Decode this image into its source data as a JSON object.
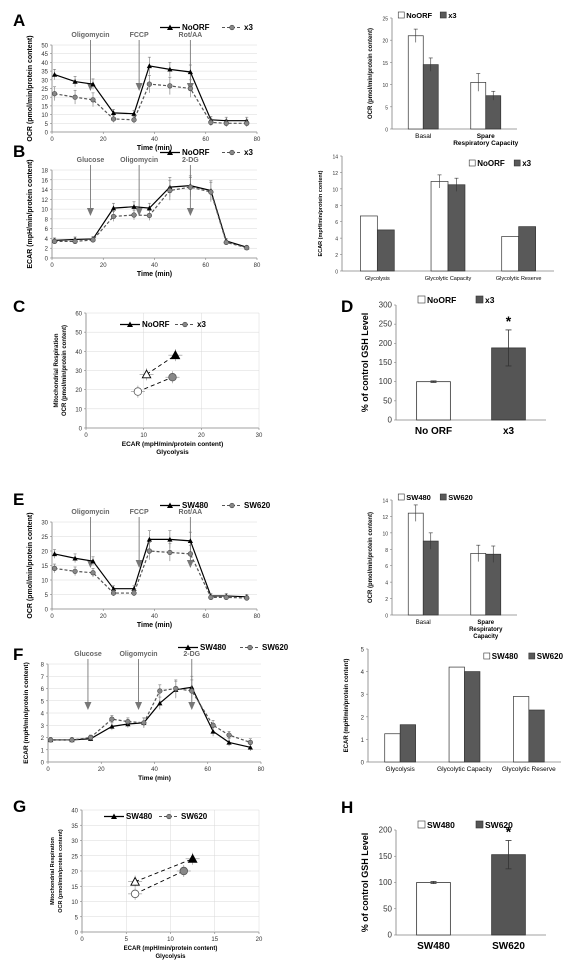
{
  "chart_data": [
    {
      "id": "A_left",
      "panel": "A",
      "type": "line",
      "xlabel": "Time (min)",
      "ylabel": "OCR (pmol/min/protein content)",
      "xlim": [
        0,
        80
      ],
      "ylim": [
        0,
        50
      ],
      "xticks": [
        0,
        20,
        40,
        60,
        80
      ],
      "yticks": [
        0,
        5,
        10,
        15,
        20,
        25,
        30,
        35,
        40,
        45,
        50
      ],
      "injections": [
        {
          "label": "Oligomycin",
          "x": 15
        },
        {
          "label": "FCCP",
          "x": 34
        },
        {
          "label": "Rot/AA",
          "x": 54
        }
      ],
      "series": [
        {
          "name": "NoORF",
          "style": "solid-triangle",
          "x": [
            1,
            9,
            16,
            24,
            32,
            38,
            46,
            54,
            62,
            68,
            76
          ],
          "y": [
            33,
            29,
            27.5,
            11,
            10.5,
            38,
            36,
            34.5,
            7,
            6.5,
            6.5
          ],
          "err": [
            3,
            3,
            3,
            2,
            2,
            5,
            4,
            4,
            2,
            2,
            2
          ]
        },
        {
          "name": "x3",
          "style": "dashed-circle",
          "x": [
            1,
            9,
            16,
            24,
            32,
            38,
            46,
            54,
            62,
            68,
            76
          ],
          "y": [
            22,
            20,
            18.5,
            7.5,
            7,
            27.5,
            26.5,
            25,
            5.5,
            5,
            5
          ],
          "err": [
            4,
            4,
            4,
            2,
            2,
            5,
            5,
            5,
            2,
            2,
            2
          ]
        }
      ]
    },
    {
      "id": "A_right",
      "panel": "",
      "type": "bar",
      "ylabel": "OCR (pmol/min/protein content)",
      "categories": [
        "Basal",
        "Spare Respiratory Capacity"
      ],
      "ylim": [
        0,
        25
      ],
      "yticks": [
        0,
        5,
        10,
        15,
        20,
        25
      ],
      "series": [
        {
          "name": "NoORF",
          "values": [
            21,
            10.5
          ],
          "err": [
            1.5,
            2
          ]
        },
        {
          "name": "x3",
          "values": [
            14.5,
            7.5
          ],
          "err": [
            1.5,
            1
          ]
        }
      ]
    },
    {
      "id": "B_left",
      "panel": "B",
      "type": "line",
      "xlabel": "Time (min)",
      "ylabel": "ECAR (mpH/min/protein content)",
      "xlim": [
        0,
        80
      ],
      "ylim": [
        0,
        18
      ],
      "xticks": [
        0,
        20,
        40,
        60,
        80
      ],
      "yticks": [
        0,
        2,
        4,
        6,
        8,
        10,
        12,
        14,
        16,
        18
      ],
      "injections": [
        {
          "label": "Glucose",
          "x": 15
        },
        {
          "label": "Oligomycin",
          "x": 34
        },
        {
          "label": "2-DG",
          "x": 54
        }
      ],
      "series": [
        {
          "name": "NoORF",
          "style": "solid-triangle",
          "x": [
            1,
            9,
            16,
            24,
            32,
            38,
            46,
            54,
            62,
            68,
            76
          ],
          "y": [
            3.6,
            3.8,
            3.9,
            10.2,
            10.5,
            10.2,
            14.5,
            14.8,
            13.8,
            3.5,
            2.2
          ],
          "err": [
            0.5,
            0.5,
            0.5,
            1,
            1,
            1,
            2,
            2,
            2,
            0.5,
            0.4
          ]
        },
        {
          "name": "x3",
          "style": "dashed-circle",
          "x": [
            1,
            9,
            16,
            24,
            32,
            38,
            46,
            54,
            62,
            68,
            76
          ],
          "y": [
            3.4,
            3.4,
            3.7,
            8.5,
            8.8,
            8.7,
            13.8,
            14.5,
            13.5,
            3.2,
            2.1
          ],
          "err": [
            0.5,
            0.5,
            0.5,
            1,
            1,
            1,
            2,
            2,
            2,
            0.5,
            0.4
          ]
        }
      ]
    },
    {
      "id": "B_right",
      "panel": "",
      "type": "bar",
      "ylabel": "ECAR (mpH/min/protein content)",
      "categories": [
        "Glycolysis",
        "Glycolytic Capacity",
        "Glycolytic Reserve"
      ],
      "ylim": [
        0,
        14
      ],
      "yticks": [
        0,
        2,
        4,
        6,
        8,
        10,
        12,
        14
      ],
      "series": [
        {
          "name": "NoORF",
          "values": [
            6.7,
            10.9,
            4.2
          ],
          "err": [
            0,
            0.8,
            0
          ]
        },
        {
          "name": "x3",
          "values": [
            5,
            10.5,
            5.4
          ],
          "err": [
            0,
            0.8,
            0
          ]
        }
      ]
    },
    {
      "id": "C",
      "panel": "C",
      "type": "scatter",
      "xlabel": "ECAR (mpH/min/protein content)",
      "xlabel2": "Glycolysis",
      "ylabel": "Mitochondrial Respiration",
      "ylabel2": "OCR (pmol/min/protein content)",
      "xlim": [
        0,
        30
      ],
      "ylim": [
        0,
        60
      ],
      "xticks": [
        0,
        10,
        20,
        30
      ],
      "yticks": [
        0,
        10,
        20,
        30,
        40,
        50,
        60
      ],
      "series": [
        {
          "name": "NoORF",
          "style": "solid-triangle",
          "points": [
            {
              "x": 10.5,
              "y": 28,
              "fill": "open"
            },
            {
              "x": 15.5,
              "y": 38,
              "fill": "filled"
            }
          ]
        },
        {
          "name": "x3",
          "style": "dashed-circle",
          "points": [
            {
              "x": 9,
              "y": 19,
              "fill": "open"
            },
            {
              "x": 15,
              "y": 26.5,
              "fill": "filled"
            }
          ]
        }
      ]
    },
    {
      "id": "D",
      "panel": "D",
      "type": "bar",
      "ylabel": "% of control GSH Level",
      "categories": [
        "No ORF",
        "x3"
      ],
      "ylim": [
        0,
        300
      ],
      "yticks": [
        0,
        50,
        100,
        150,
        200,
        250,
        300
      ],
      "values": [
        100,
        188
      ],
      "err": [
        2,
        47
      ],
      "colors": [
        "#ffffff",
        "#555555"
      ],
      "legend": [
        "NoORF",
        "x3"
      ],
      "annotation": "*"
    },
    {
      "id": "E_left",
      "panel": "E",
      "type": "line",
      "xlabel": "Time (min)",
      "ylabel": "OCR (pmol/min/protein content)",
      "xlim": [
        0,
        80
      ],
      "ylim": [
        0,
        30
      ],
      "xticks": [
        0,
        20,
        40,
        60,
        80
      ],
      "yticks": [
        0,
        5,
        10,
        15,
        20,
        25,
        30
      ],
      "injections": [
        {
          "label": "Oligomycin",
          "x": 15
        },
        {
          "label": "FCCP",
          "x": 34
        },
        {
          "label": "Rot/AA",
          "x": 54
        }
      ],
      "series": [
        {
          "name": "SW480",
          "style": "solid-triangle",
          "x": [
            1,
            9,
            16,
            24,
            32,
            38,
            46,
            54,
            62,
            68,
            76
          ],
          "y": [
            19,
            17.5,
            16.5,
            7,
            7,
            24,
            24,
            23.5,
            4.5,
            4.5,
            4.2
          ],
          "err": [
            1.5,
            1.5,
            1.5,
            1,
            1,
            3,
            3,
            3,
            0.8,
            0.8,
            0.8
          ]
        },
        {
          "name": "SW620",
          "style": "dashed-circle",
          "x": [
            1,
            9,
            16,
            24,
            32,
            38,
            46,
            54,
            62,
            68,
            76
          ],
          "y": [
            14,
            13,
            12.5,
            5.5,
            5.5,
            20,
            19.5,
            19,
            4,
            4,
            3.8
          ],
          "err": [
            1.5,
            1.5,
            1.5,
            1,
            1,
            3,
            3,
            3,
            0.8,
            0.8,
            0.8
          ]
        }
      ]
    },
    {
      "id": "E_right",
      "panel": "",
      "type": "bar",
      "ylabel": "OCR (pmol/min/protein content)",
      "categories": [
        "Basal",
        "Spare Respiratory Capacity"
      ],
      "ylim": [
        0,
        14
      ],
      "yticks": [
        0,
        2,
        4,
        6,
        8,
        10,
        12,
        14
      ],
      "series": [
        {
          "name": "SW480",
          "values": [
            12.4,
            7.5
          ],
          "err": [
            1,
            1
          ]
        },
        {
          "name": "SW620",
          "values": [
            9,
            7.4
          ],
          "err": [
            1,
            1
          ]
        }
      ]
    },
    {
      "id": "F_left",
      "panel": "F",
      "type": "line",
      "xlabel": "Time (min)",
      "ylabel": "ECAR (mpH/min/protein content)",
      "xlim": [
        0,
        80
      ],
      "ylim": [
        0,
        8
      ],
      "xticks": [
        0,
        20,
        40,
        60,
        80
      ],
      "yticks": [
        0,
        1,
        2,
        3,
        4,
        5,
        6,
        7,
        8
      ],
      "injections": [
        {
          "label": "Glucose",
          "x": 15
        },
        {
          "label": "Oligomycin",
          "x": 34
        },
        {
          "label": "2-DG",
          "x": 54
        }
      ],
      "series": [
        {
          "name": "SW480",
          "style": "solid-triangle",
          "x": [
            1,
            9,
            16,
            24,
            30,
            36,
            42,
            48,
            54,
            62,
            68,
            76
          ],
          "y": [
            1.8,
            1.8,
            1.9,
            2.9,
            3.1,
            3.2,
            4.8,
            5.9,
            6.1,
            2.5,
            1.6,
            1.2
          ],
          "err": [
            0.2,
            0.2,
            0.2,
            0.3,
            0.3,
            0.4,
            0.5,
            0.7,
            0.9,
            0.4,
            0.3,
            0.3
          ]
        },
        {
          "name": "SW620",
          "style": "dashed-circle",
          "x": [
            1,
            9,
            16,
            24,
            30,
            36,
            42,
            48,
            54,
            62,
            68,
            76
          ],
          "y": [
            1.8,
            1.8,
            2,
            3.5,
            3.3,
            3.2,
            5.8,
            6,
            5.8,
            3,
            2.2,
            1.6
          ],
          "err": [
            0.2,
            0.2,
            0.2,
            0.3,
            0.3,
            0.4,
            0.5,
            0.7,
            0.9,
            0.4,
            0.3,
            0.3
          ]
        }
      ]
    },
    {
      "id": "F_right",
      "panel": "",
      "type": "bar",
      "ylabel": "ECAR (mpH/min/protein content)",
      "categories": [
        "Glycolysis",
        "Glycolytic Capacity",
        "Glycolytic Reserve"
      ],
      "ylim": [
        0,
        5
      ],
      "yticks": [
        0,
        1,
        2,
        3,
        4,
        5
      ],
      "series": [
        {
          "name": "SW480",
          "values": [
            1.25,
            4.2,
            2.9
          ],
          "err": [
            0,
            0,
            0
          ]
        },
        {
          "name": "SW620",
          "values": [
            1.65,
            4,
            2.3
          ],
          "err": [
            0,
            0,
            0
          ]
        }
      ]
    },
    {
      "id": "G",
      "panel": "G",
      "type": "scatter",
      "xlabel": "ECAR (mpH/min/protein content)",
      "xlabel2": "Glycolysis",
      "ylabel": "Mitochondrial Respiration",
      "ylabel2": "OCR (pmol/min/protein content)",
      "xlim": [
        0,
        20
      ],
      "ylim": [
        0,
        40
      ],
      "xticks": [
        0,
        5,
        10,
        15,
        20
      ],
      "yticks": [
        0,
        5,
        10,
        15,
        20,
        25,
        30,
        35,
        40
      ],
      "series": [
        {
          "name": "SW480",
          "style": "solid-triangle",
          "points": [
            {
              "x": 6,
              "y": 16.5,
              "fill": "open"
            },
            {
              "x": 12.5,
              "y": 24,
              "fill": "filled"
            }
          ]
        },
        {
          "name": "SW620",
          "style": "dashed-circle",
          "points": [
            {
              "x": 6,
              "y": 12.5,
              "fill": "open"
            },
            {
              "x": 11.5,
              "y": 20,
              "fill": "filled"
            }
          ]
        }
      ]
    },
    {
      "id": "H",
      "panel": "H",
      "type": "bar",
      "ylabel": "% of control GSH Level",
      "categories": [
        "SW480",
        "SW620"
      ],
      "ylim": [
        0,
        200
      ],
      "yticks": [
        0,
        50,
        100,
        150,
        200
      ],
      "values": [
        100,
        153
      ],
      "err": [
        2,
        27
      ],
      "colors": [
        "#ffffff",
        "#555555"
      ],
      "legend": [
        "SW480",
        "SW620"
      ],
      "annotation": "*"
    }
  ]
}
